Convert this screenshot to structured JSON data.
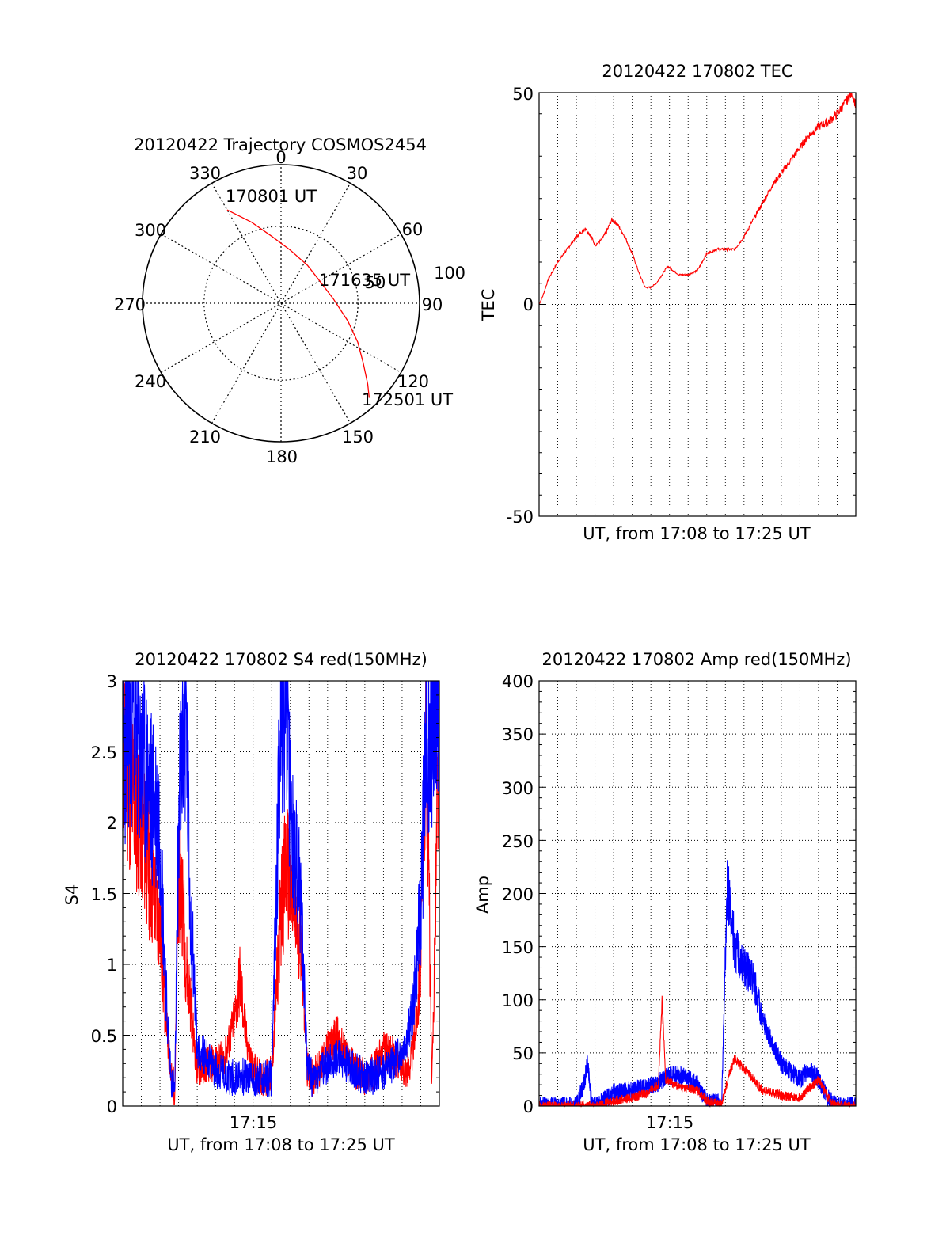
{
  "colors": {
    "red": "#ff0000",
    "blue": "#0000ff",
    "axis": "#000000",
    "grid": "#000000",
    "background": "#ffffff"
  },
  "chart_data": [
    {
      "id": "trajectory",
      "type": "polar",
      "title": "20120422 Trajectory COSMOS2454",
      "angle_labels": [
        "0",
        "30",
        "60",
        "90",
        "120",
        "150",
        "180",
        "210",
        "240",
        "270",
        "300",
        "330"
      ],
      "radial_labels": [
        "50",
        "100"
      ],
      "rlim": [
        0,
        90
      ],
      "grid": true,
      "start_label": "170801 UT",
      "mid_label": "171635 UT",
      "end_label": "172501 UT",
      "series": [
        {
          "color": "red",
          "points": [
            {
              "az": 330,
              "r": 70
            },
            {
              "az": 340,
              "r": 56
            },
            {
              "az": 352,
              "r": 44
            },
            {
              "az": 10,
              "r": 35
            },
            {
              "az": 35,
              "r": 30
            },
            {
              "az": 60,
              "r": 29
            },
            {
              "az": 85,
              "r": 34
            },
            {
              "az": 105,
              "r": 45
            },
            {
              "az": 117,
              "r": 56
            },
            {
              "az": 126,
              "r": 66
            },
            {
              "az": 133,
              "r": 77
            },
            {
              "az": 137,
              "r": 84
            }
          ]
        }
      ]
    },
    {
      "id": "tec",
      "type": "line",
      "title": "20120422 170802 TEC",
      "xlabel": "UT, from 17:08 to 17:25 UT",
      "ylabel": "TEC",
      "xlim": [
        0,
        17
      ],
      "ylim": [
        -50,
        50
      ],
      "yticks": [
        "50",
        "0",
        "-50"
      ],
      "xticks": [],
      "grid": true,
      "series": [
        {
          "color": "red",
          "x": [
            0,
            0.2,
            0.5,
            1,
            1.5,
            2,
            2.5,
            2.8,
            3,
            3.3,
            3.6,
            3.9,
            4.2,
            4.6,
            5,
            5.4,
            5.7,
            6,
            6.3,
            6.6,
            6.9,
            7.2,
            7.5,
            8,
            8.5,
            9,
            9.5,
            10,
            10.5,
            11,
            11.5,
            12,
            12.5,
            13,
            13.5,
            14,
            14.5,
            15,
            15.5,
            16,
            16.5,
            16.8,
            17
          ],
          "y": [
            0,
            2,
            6,
            10,
            13,
            16,
            18,
            16,
            14,
            15,
            17,
            20,
            19,
            16,
            12,
            7,
            4,
            4,
            5,
            7,
            9,
            8,
            7,
            7,
            8,
            12,
            13,
            13,
            13,
            16,
            20,
            24,
            28,
            31,
            34,
            37,
            40,
            42,
            43,
            45,
            48,
            50,
            47
          ]
        }
      ]
    },
    {
      "id": "s4",
      "type": "line",
      "title": "20120422 170802 S4 red(150MHz)",
      "xlabel": "UT, from 17:08 to 17:25 UT",
      "ylabel": "S4",
      "xlim": [
        0,
        17
      ],
      "ylim": [
        0,
        3
      ],
      "yticks": [
        "0",
        "0.5",
        "1",
        "1.5",
        "2",
        "2.5",
        "3"
      ],
      "xticks": [
        "17:15"
      ],
      "grid": true,
      "series": [
        {
          "color": "red",
          "x": [
            0,
            0.5,
            1,
            1.5,
            2,
            2.2,
            2.4,
            2.6,
            2.8,
            3.0,
            3.2,
            3.4,
            3.6,
            3.8,
            4.0,
            4.5,
            5,
            5.5,
            6,
            6.3,
            6.6,
            7,
            7.5,
            8,
            8.5,
            8.8,
            9,
            9.3,
            9.6,
            9.9,
            10.2,
            10.5,
            11,
            11.5,
            12,
            12.5,
            13,
            13.5,
            14,
            14.5,
            15,
            15.3,
            15.6,
            16,
            16.3,
            16.6,
            17
          ],
          "y": [
            2.6,
            2.2,
            2.0,
            1.6,
            1.3,
            0.8,
            0.5,
            0.2,
            0.12,
            1.6,
            1.5,
            1.0,
            0.8,
            0.5,
            0.25,
            0.3,
            0.3,
            0.35,
            0.6,
            0.9,
            0.5,
            0.25,
            0.2,
            0.22,
            1.4,
            1.7,
            1.5,
            1.3,
            1.2,
            0.25,
            0.2,
            0.25,
            0.4,
            0.5,
            0.35,
            0.25,
            0.2,
            0.25,
            0.4,
            0.35,
            0.3,
            0.25,
            0.4,
            1.0,
            2.9,
            0.1,
            2.9
          ]
        },
        {
          "color": "blue",
          "x": [
            0,
            0.5,
            1,
            1.5,
            2,
            2.2,
            2.4,
            2.6,
            2.8,
            3.0,
            3.2,
            3.4,
            3.6,
            3.8,
            4.0,
            4.5,
            5,
            5.5,
            6,
            6.3,
            6.6,
            7,
            7.5,
            8,
            8.5,
            8.8,
            9,
            9.3,
            9.6,
            9.9,
            10.2,
            10.5,
            11,
            11.5,
            12,
            12.5,
            13,
            13.5,
            14,
            14.5,
            15,
            15.3,
            15.6,
            16,
            16.3,
            16.6,
            17
          ],
          "y": [
            2.5,
            2.8,
            2.4,
            2.2,
            2.0,
            1.2,
            0.6,
            0.2,
            0.1,
            2.0,
            2.6,
            2.8,
            1.5,
            1.0,
            0.4,
            0.35,
            0.25,
            0.22,
            0.2,
            0.22,
            0.2,
            0.2,
            0.18,
            0.2,
            2.9,
            2.8,
            2.0,
            1.7,
            1.4,
            0.3,
            0.18,
            0.2,
            0.3,
            0.35,
            0.3,
            0.25,
            0.2,
            0.22,
            0.25,
            0.3,
            0.4,
            0.5,
            0.7,
            1.4,
            2.6,
            2.8,
            3.0
          ]
        }
      ]
    },
    {
      "id": "amp",
      "type": "line",
      "title": "20120422 170802 Amp red(150MHz)",
      "xlabel": "UT, from 17:08 to 17:25 UT",
      "ylabel": "Amp",
      "xlim": [
        0,
        17
      ],
      "ylim": [
        0,
        400
      ],
      "yticks": [
        "0",
        "50",
        "100",
        "150",
        "200",
        "250",
        "300",
        "350",
        "400"
      ],
      "xticks": [
        "17:15"
      ],
      "grid": true,
      "series": [
        {
          "color": "red",
          "x": [
            0,
            2,
            2.6,
            2.8,
            3.0,
            3.5,
            4,
            5,
            5.8,
            6.4,
            6.6,
            6.8,
            7.5,
            8.5,
            9,
            9.8,
            10.2,
            10.5,
            11,
            11.5,
            12,
            13,
            14,
            15,
            15.6,
            16,
            17
          ],
          "y": [
            0,
            0,
            0,
            1,
            0,
            2,
            5,
            8,
            12,
            20,
            97,
            25,
            18,
            15,
            5,
            2,
            30,
            45,
            35,
            25,
            15,
            10,
            8,
            25,
            5,
            0,
            0
          ]
        },
        {
          "color": "blue",
          "x": [
            0,
            2,
            2.4,
            2.6,
            2.8,
            3.0,
            3.5,
            4,
            5,
            5.8,
            6.4,
            6.8,
            7.5,
            8.5,
            9,
            9.8,
            10.1,
            10.5,
            11,
            11.5,
            12,
            13,
            14,
            14.5,
            15,
            15.6,
            16,
            17
          ],
          "y": [
            0,
            0,
            20,
            40,
            5,
            0,
            5,
            12,
            15,
            18,
            22,
            28,
            30,
            20,
            5,
            2,
            210,
            150,
            130,
            120,
            80,
            40,
            25,
            35,
            25,
            5,
            0,
            0
          ]
        }
      ]
    }
  ]
}
